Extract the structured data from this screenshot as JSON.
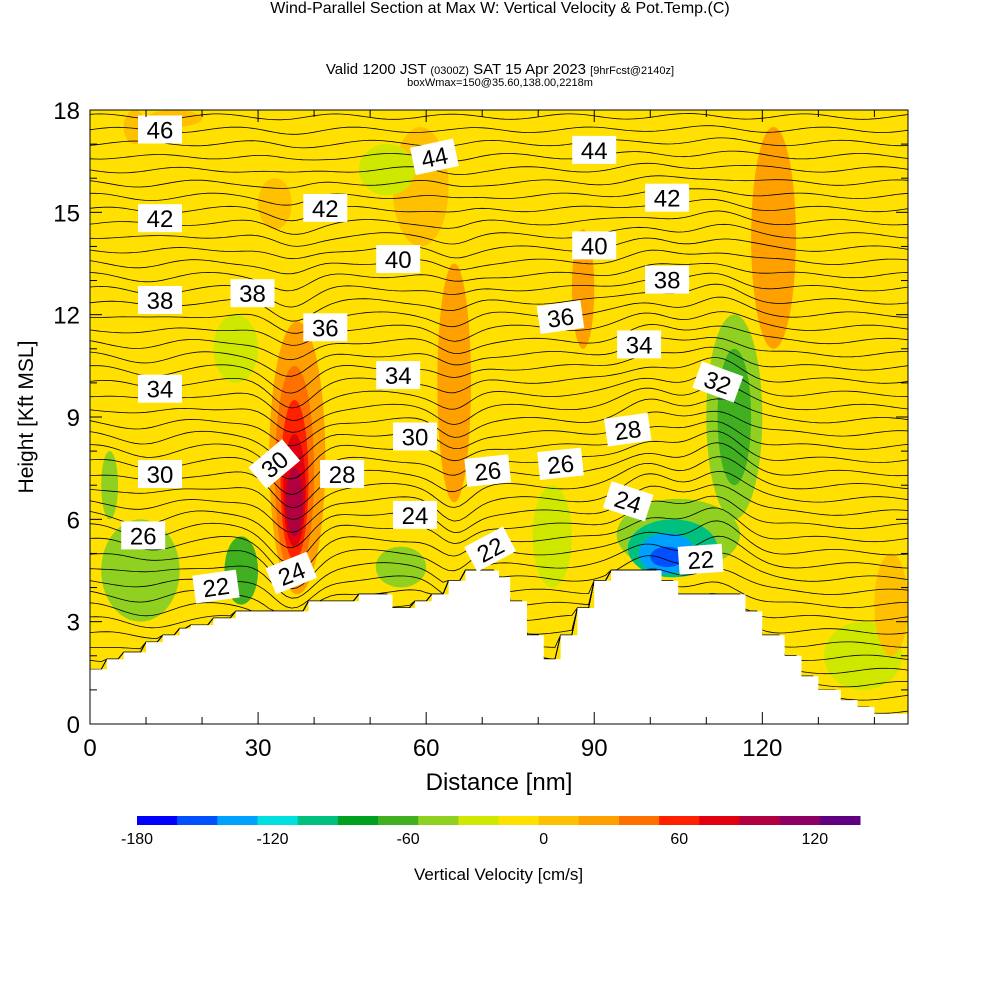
{
  "title": {
    "main": "Wind-Parallel Section at Max W: Vertical Velocity & Pot.Temp.",
    "copyright": "(C)",
    "valid_prefix": "Valid 1200 JST",
    "valid_utc": "(0300Z)",
    "valid_date": "SAT 15 Apr 2023",
    "forecast": "[9hrFcst@2140z]",
    "box_info": "boxWmax=150@35.60,138.00,2218m"
  },
  "chart_data": {
    "type": "heatmap",
    "xlabel": "Distance [nm]",
    "ylabel": "Height [Kft MSL]",
    "xlim": [
      0,
      146
    ],
    "ylim": [
      0,
      18
    ],
    "xticks": [
      0,
      30,
      60,
      90,
      120
    ],
    "yticks": [
      0,
      3,
      6,
      9,
      12,
      15,
      18
    ],
    "colorbar": {
      "label": "Vertical Velocity [cm/s]",
      "min": -180,
      "max": 140,
      "step": 20,
      "tick_values": [
        -180,
        -120,
        -60,
        0,
        60,
        120
      ],
      "colors": [
        "#0000ff",
        "#0050ff",
        "#00a0ff",
        "#00e0e0",
        "#00c080",
        "#00a020",
        "#40b020",
        "#90d020",
        "#d0e800",
        "#ffe000",
        "#ffc000",
        "#ffa000",
        "#ff7000",
        "#ff2000",
        "#e00010",
        "#b00040",
        "#8c0064",
        "#600080"
      ]
    },
    "background_value": 10,
    "cells": [
      {
        "x": [
          32,
          42
        ],
        "y": [
          3.8,
          11.8
        ],
        "v": 40
      },
      {
        "x": [
          33,
          40
        ],
        "y": [
          4.3,
          10.5
        ],
        "v": 60
      },
      {
        "x": [
          34,
          39
        ],
        "y": [
          4.8,
          9.5
        ],
        "v": 80
      },
      {
        "x": [
          34.5,
          38.5
        ],
        "y": [
          5.2,
          8.5
        ],
        "v": 100
      },
      {
        "x": [
          35,
          38
        ],
        "y": [
          5.5,
          7.5
        ],
        "v": 120
      },
      {
        "x": [
          62,
          68
        ],
        "y": [
          6.5,
          13.5
        ],
        "v": 40
      },
      {
        "x": [
          63,
          67
        ],
        "y": [
          8,
          12.5
        ],
        "v": 50
      },
      {
        "x": [
          86,
          90
        ],
        "y": [
          11,
          14.5
        ],
        "v": 40
      },
      {
        "x": [
          118,
          126
        ],
        "y": [
          11,
          17.5
        ],
        "v": 40
      },
      {
        "x": [
          119,
          124
        ],
        "y": [
          13,
          16
        ],
        "v": 55
      },
      {
        "x": [
          30,
          36
        ],
        "y": [
          14.5,
          16
        ],
        "v": 30
      },
      {
        "x": [
          54,
          64
        ],
        "y": [
          14,
          17.5
        ],
        "v": 30
      },
      {
        "x": [
          6,
          10
        ],
        "y": [
          17,
          18
        ],
        "v": 30
      },
      {
        "x": [
          10,
          20
        ],
        "y": [
          17.5,
          18
        ],
        "v": 30
      },
      {
        "x": [
          48,
          58
        ],
        "y": [
          15.5,
          17
        ],
        "v": -10
      },
      {
        "x": [
          22,
          30
        ],
        "y": [
          10,
          12
        ],
        "v": -10
      },
      {
        "x": [
          2,
          16
        ],
        "y": [
          3,
          6
        ],
        "v": -40
      },
      {
        "x": [
          2,
          5
        ],
        "y": [
          6,
          8
        ],
        "v": -30
      },
      {
        "x": [
          24,
          30
        ],
        "y": [
          3.5,
          5.5
        ],
        "v": -60
      },
      {
        "x": [
          94,
          116
        ],
        "y": [
          4.5,
          6.6
        ],
        "v": -40
      },
      {
        "x": [
          96,
          112
        ],
        "y": [
          4.3,
          6.0
        ],
        "v": -90
      },
      {
        "x": [
          98,
          108
        ],
        "y": [
          4.4,
          5.6
        ],
        "v": -140
      },
      {
        "x": [
          100,
          106
        ],
        "y": [
          4.6,
          5.2
        ],
        "v": -160
      },
      {
        "x": [
          110,
          120
        ],
        "y": [
          6,
          12
        ],
        "v": -40
      },
      {
        "x": [
          112,
          118
        ],
        "y": [
          7,
          11
        ],
        "v": -50
      },
      {
        "x": [
          51,
          60
        ],
        "y": [
          4,
          5.2
        ],
        "v": -40
      },
      {
        "x": [
          79,
          86
        ],
        "y": [
          4,
          7
        ],
        "v": -20
      },
      {
        "x": [
          131,
          145
        ],
        "y": [
          1,
          3
        ],
        "v": -10
      },
      {
        "x": [
          140,
          146
        ],
        "y": [
          2,
          5
        ],
        "v": 30
      }
    ],
    "terrain": [
      [
        0,
        1.6
      ],
      [
        3,
        1.6
      ],
      [
        3,
        1.9
      ],
      [
        6,
        1.9
      ],
      [
        6,
        2.1
      ],
      [
        10,
        2.1
      ],
      [
        10,
        2.4
      ],
      [
        13,
        2.4
      ],
      [
        13,
        2.6
      ],
      [
        16,
        2.6
      ],
      [
        16,
        2.8
      ],
      [
        18,
        2.8
      ],
      [
        18,
        2.9
      ],
      [
        22,
        2.9
      ],
      [
        22,
        3.1
      ],
      [
        26,
        3.1
      ],
      [
        26,
        3.3
      ],
      [
        39,
        3.3
      ],
      [
        39,
        3.6
      ],
      [
        48,
        3.6
      ],
      [
        48,
        3.8
      ],
      [
        54,
        3.8
      ],
      [
        54,
        3.4
      ],
      [
        58,
        3.4
      ],
      [
        58,
        3.6
      ],
      [
        61,
        3.6
      ],
      [
        61,
        3.8
      ],
      [
        64,
        3.8
      ],
      [
        64,
        4.2
      ],
      [
        67,
        4.2
      ],
      [
        67,
        4.5
      ],
      [
        73,
        4.5
      ],
      [
        73,
        4.3
      ],
      [
        75,
        4.3
      ],
      [
        75,
        3.6
      ],
      [
        78,
        3.6
      ],
      [
        78,
        2.6
      ],
      [
        81,
        2.6
      ],
      [
        81,
        1.9
      ],
      [
        84,
        1.9
      ],
      [
        84,
        2.6
      ],
      [
        87,
        2.6
      ],
      [
        87,
        3.4
      ],
      [
        90,
        3.4
      ],
      [
        90,
        4.2
      ],
      [
        93,
        4.2
      ],
      [
        93,
        4.5
      ],
      [
        102,
        4.5
      ],
      [
        102,
        4.2
      ],
      [
        105,
        4.2
      ],
      [
        105,
        3.8
      ],
      [
        117,
        3.8
      ],
      [
        117,
        3.3
      ],
      [
        120,
        3.3
      ],
      [
        120,
        2.6
      ],
      [
        124,
        2.6
      ],
      [
        124,
        2.0
      ],
      [
        127,
        2.0
      ],
      [
        127,
        1.4
      ],
      [
        130,
        1.4
      ],
      [
        130,
        1.0
      ],
      [
        134,
        1.0
      ],
      [
        134,
        0.7
      ],
      [
        137,
        0.7
      ],
      [
        137,
        0.5
      ],
      [
        140,
        0.5
      ],
      [
        140,
        0.3
      ],
      [
        146,
        0.3
      ]
    ],
    "isentrope_labels": [
      {
        "text": "46",
        "x": 12.5,
        "y": 17.4,
        "rot": 0
      },
      {
        "text": "44",
        "x": 61.5,
        "y": 16.6,
        "rot": -12
      },
      {
        "text": "44",
        "x": 90,
        "y": 16.8,
        "rot": 0
      },
      {
        "text": "42",
        "x": 12.5,
        "y": 14.8,
        "rot": 0
      },
      {
        "text": "42",
        "x": 42,
        "y": 15.1,
        "rot": 0
      },
      {
        "text": "42",
        "x": 103,
        "y": 15.4,
        "rot": 0
      },
      {
        "text": "40",
        "x": 55,
        "y": 13.6,
        "rot": 0
      },
      {
        "text": "40",
        "x": 90,
        "y": 14.0,
        "rot": 0
      },
      {
        "text": "38",
        "x": 12.5,
        "y": 12.4,
        "rot": 0
      },
      {
        "text": "38",
        "x": 29,
        "y": 12.6,
        "rot": 0
      },
      {
        "text": "38",
        "x": 103,
        "y": 13.0,
        "rot": 0
      },
      {
        "text": "36",
        "x": 42,
        "y": 11.6,
        "rot": 0
      },
      {
        "text": "36",
        "x": 84,
        "y": 11.9,
        "rot": -8
      },
      {
        "text": "34",
        "x": 12.5,
        "y": 9.8,
        "rot": 0
      },
      {
        "text": "34",
        "x": 55,
        "y": 10.2,
        "rot": 0
      },
      {
        "text": "34",
        "x": 98,
        "y": 11.1,
        "rot": 0
      },
      {
        "text": "32",
        "x": 112,
        "y": 10.0,
        "rot": 20
      },
      {
        "text": "30",
        "x": 12.5,
        "y": 7.3,
        "rot": 0
      },
      {
        "text": "30",
        "x": 33,
        "y": 7.6,
        "rot": -40
      },
      {
        "text": "30",
        "x": 58,
        "y": 8.4,
        "rot": 0
      },
      {
        "text": "28",
        "x": 45,
        "y": 7.3,
        "rot": 0
      },
      {
        "text": "28",
        "x": 96,
        "y": 8.6,
        "rot": -8
      },
      {
        "text": "26",
        "x": 9.5,
        "y": 5.5,
        "rot": 0
      },
      {
        "text": "26",
        "x": 71,
        "y": 7.4,
        "rot": -6
      },
      {
        "text": "26",
        "x": 84,
        "y": 7.6,
        "rot": -6
      },
      {
        "text": "24",
        "x": 58,
        "y": 6.1,
        "rot": 0
      },
      {
        "text": "24",
        "x": 36,
        "y": 4.4,
        "rot": -22
      },
      {
        "text": "24",
        "x": 96,
        "y": 6.5,
        "rot": 18
      },
      {
        "text": "22",
        "x": 22.5,
        "y": 4.0,
        "rot": -8
      },
      {
        "text": "22",
        "x": 71.5,
        "y": 5.1,
        "rot": -28
      },
      {
        "text": "22",
        "x": 109,
        "y": 4.8,
        "rot": -4
      }
    ],
    "isentrope_bumps": [
      {
        "x": 36,
        "amp": -1.1,
        "w": 5
      },
      {
        "x": 65,
        "amp": -0.6,
        "w": 4
      },
      {
        "x": 112,
        "amp": 0.9,
        "w": 6
      },
      {
        "x": 100,
        "amp": 0.7,
        "w": 6
      },
      {
        "x": 10,
        "amp": -0.3,
        "w": 6
      }
    ],
    "isentrope_levels": 46
  }
}
